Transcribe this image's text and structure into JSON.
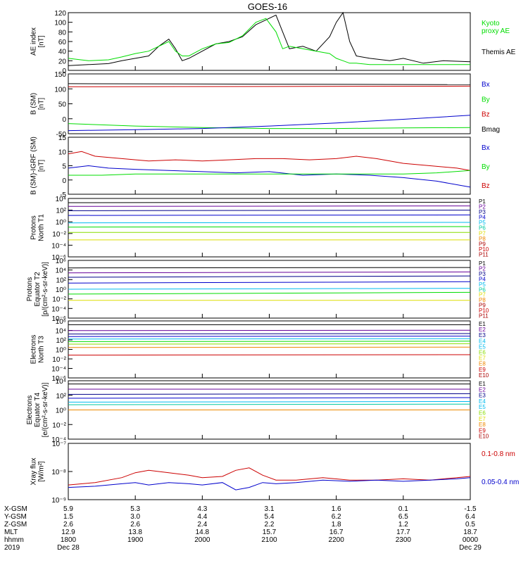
{
  "title": "GOES-16",
  "colors": {
    "black": "#000000",
    "green": "#00dd00",
    "blue": "#0000cc",
    "red": "#cc0000",
    "cyan": "#00bbee",
    "teal": "#00c8a0",
    "lime": "#88dd00",
    "yellow": "#dddd00",
    "orange": "#ee8800",
    "purple": "#660099",
    "navy": "#000088",
    "darkred": "#aa0000"
  },
  "chart_data": [
    {
      "type": "line",
      "ylabel": "AE index\n[nT]",
      "yticks": [
        "120",
        "100",
        "80",
        "60",
        "40",
        "20",
        "0"
      ],
      "ylim": [
        0,
        120
      ],
      "legend": [
        {
          "label": "Kyoto\nproxy AE",
          "color": "green"
        },
        {
          "label": "Themis AE",
          "color": "black"
        }
      ],
      "x_hours": [
        0,
        1,
        2,
        3,
        4,
        5,
        6
      ],
      "series": [
        {
          "name": "Themis AE",
          "color": "black",
          "x": [
            0,
            0.3,
            0.6,
            0.8,
            1.0,
            1.2,
            1.35,
            1.5,
            1.6,
            1.7,
            1.8,
            2.0,
            2.2,
            2.4,
            2.6,
            2.8,
            2.95,
            3.1,
            3.2,
            3.3,
            3.5,
            3.7,
            3.9,
            4.0,
            4.1,
            4.2,
            4.3,
            4.5,
            4.8,
            5.0,
            5.3,
            5.6,
            6.0
          ],
          "y": [
            10,
            12,
            14,
            20,
            25,
            30,
            50,
            65,
            45,
            20,
            25,
            40,
            55,
            60,
            70,
            95,
            105,
            115,
            80,
            45,
            50,
            40,
            70,
            100,
            120,
            60,
            30,
            25,
            20,
            25,
            15,
            20,
            18
          ]
        },
        {
          "name": "Kyoto proxy AE",
          "color": "green",
          "x": [
            0,
            0.3,
            0.6,
            0.8,
            1.0,
            1.2,
            1.35,
            1.5,
            1.6,
            1.7,
            1.8,
            2.0,
            2.2,
            2.4,
            2.6,
            2.8,
            2.95,
            3.1,
            3.2,
            3.3,
            3.5,
            3.7,
            3.9,
            4.0,
            4.1,
            4.2,
            4.3,
            4.5,
            4.8,
            5.0,
            5.3,
            5.6,
            6.0
          ],
          "y": [
            25,
            20,
            22,
            28,
            35,
            40,
            50,
            60,
            40,
            30,
            30,
            45,
            55,
            58,
            72,
            100,
            108,
            80,
            45,
            50,
            45,
            40,
            35,
            25,
            20,
            15,
            15,
            12,
            12,
            12,
            12,
            12,
            12
          ]
        }
      ]
    },
    {
      "type": "line",
      "ylabel": "B (SM)\n[nT]",
      "yticks": [
        "150",
        "100",
        "50",
        "0",
        "-50"
      ],
      "ylim": [
        -55,
        140
      ],
      "legend": [
        {
          "label": "Bx",
          "color": "blue"
        },
        {
          "label": "By",
          "color": "green"
        },
        {
          "label": "Bz",
          "color": "red"
        },
        {
          "label": "Bmag",
          "color": "black"
        }
      ],
      "series": [
        {
          "name": "Bmag",
          "color": "black",
          "x": [
            0,
            6
          ],
          "y": [
            108,
            105
          ]
        },
        {
          "name": "Bz",
          "color": "red",
          "x": [
            0,
            6
          ],
          "y": [
            98,
            100
          ]
        },
        {
          "name": "By",
          "color": "green",
          "x": [
            0,
            1,
            2,
            3,
            4,
            5,
            6
          ],
          "y": [
            -22,
            -30,
            -35,
            -38,
            -38,
            -36,
            -35
          ]
        },
        {
          "name": "Bx",
          "color": "blue",
          "x": [
            0,
            1,
            2,
            3,
            4,
            5,
            6
          ],
          "y": [
            -45,
            -42,
            -38,
            -30,
            -20,
            -8,
            5
          ]
        }
      ]
    },
    {
      "type": "line",
      "ylabel": "B (SM)-IGRF (SM)\n[nT]",
      "yticks": [
        "15",
        "10",
        "5",
        "0",
        "-5"
      ],
      "ylim": [
        -7,
        17
      ],
      "legend": [
        {
          "label": "Bx",
          "color": "blue"
        },
        {
          "label": "By",
          "color": "green"
        },
        {
          "label": "Bz",
          "color": "red"
        }
      ],
      "series": [
        {
          "name": "Bz",
          "color": "red",
          "x": [
            0,
            0.2,
            0.4,
            0.8,
            1.2,
            1.6,
            2.0,
            2.4,
            2.8,
            3.2,
            3.6,
            4.0,
            4.3,
            4.6,
            5.0,
            5.4,
            5.8,
            6.0
          ],
          "y": [
            10,
            11,
            9,
            8,
            7,
            7.5,
            7,
            7.5,
            8,
            8,
            7.5,
            8,
            9,
            8,
            6,
            5,
            4,
            3
          ]
        },
        {
          "name": "Bx",
          "color": "blue",
          "x": [
            0,
            0.3,
            0.6,
            1.0,
            1.5,
            2.0,
            2.5,
            3.0,
            3.5,
            4.0,
            4.5,
            5.0,
            5.5,
            6.0
          ],
          "y": [
            4,
            5,
            4,
            3.5,
            3,
            2.5,
            2,
            2.5,
            1,
            1.5,
            1,
            0,
            -1.5,
            -4
          ]
        },
        {
          "name": "By",
          "color": "green",
          "x": [
            0,
            0.5,
            1.0,
            2.0,
            3.0,
            4.0,
            5.0,
            5.5,
            6.0
          ],
          "y": [
            1,
            1,
            1.5,
            1.5,
            1.5,
            1.5,
            1.5,
            2,
            3
          ]
        }
      ]
    },
    {
      "type": "line",
      "ylabel": "Protons\nNorth T1",
      "yticks": [
        "10⁴",
        "10²",
        "10⁰",
        "10⁻²",
        "10⁻⁴",
        "10⁻⁶"
      ],
      "ylim": [
        -7,
        4
      ],
      "log": true,
      "legend": [
        "P1",
        "P2",
        "P3",
        "P4",
        "P5",
        "P6",
        "P7",
        "P8",
        "P9",
        "P10",
        "P11"
      ],
      "series": [
        {
          "name": "P1",
          "color": "black",
          "x": [
            0,
            6
          ],
          "y": [
            3.2,
            3.3
          ]
        },
        {
          "name": "P2",
          "color": "purple",
          "x": [
            0,
            6
          ],
          "y": [
            2.5,
            2.6
          ]
        },
        {
          "name": "P3",
          "color": "navy",
          "x": [
            0,
            6
          ],
          "y": [
            1.7,
            1.8
          ]
        },
        {
          "name": "P4",
          "color": "blue",
          "x": [
            0,
            6
          ],
          "y": [
            0.8,
            0.9
          ]
        },
        {
          "name": "P5",
          "color": "cyan",
          "x": [
            0,
            6
          ],
          "y": [
            -0.6,
            -0.5
          ]
        },
        {
          "name": "P6",
          "color": "green",
          "x": [
            0,
            6
          ],
          "y": [
            -1.4,
            -1.3
          ]
        },
        {
          "name": "P7",
          "color": "lime",
          "x": [
            0,
            6
          ],
          "y": [
            -2.4,
            -2.4
          ]
        },
        {
          "name": "P8",
          "color": "yellow",
          "x": [
            0,
            6
          ],
          "y": [
            -3.8,
            -3.8
          ]
        }
      ]
    },
    {
      "type": "line",
      "ylabel": "Protons\nEquator T2\n[p/(cm²-s-sr-keV)]",
      "yticks": [
        "10⁶",
        "10⁴",
        "10²",
        "10⁰",
        "10⁻²",
        "10⁻⁴",
        "10⁻⁶"
      ],
      "ylim": [
        -7,
        6
      ],
      "log": true,
      "legend": [
        "P1",
        "P2",
        "P3",
        "P4",
        "P5",
        "P6",
        "P7",
        "P8",
        "P9",
        "P10",
        "P11"
      ],
      "series": [
        {
          "name": "P1",
          "color": "black",
          "x": [
            0,
            6
          ],
          "y": [
            4.3,
            4.4
          ]
        },
        {
          "name": "P2",
          "color": "purple",
          "x": [
            0,
            6
          ],
          "y": [
            3.2,
            3.4
          ]
        },
        {
          "name": "P3",
          "color": "navy",
          "x": [
            0,
            6
          ],
          "y": [
            2.2,
            2.5
          ]
        },
        {
          "name": "P4",
          "color": "blue",
          "x": [
            0,
            6
          ],
          "y": [
            0.9,
            1.2
          ]
        },
        {
          "name": "P5",
          "color": "cyan",
          "x": [
            0,
            6
          ],
          "y": [
            -0.5,
            -0.3
          ]
        },
        {
          "name": "P6",
          "color": "green",
          "x": [
            0,
            6
          ],
          "y": [
            -1.6,
            -1.2
          ]
        },
        {
          "name": "P7",
          "color": "yellow",
          "x": [
            0,
            6
          ],
          "y": [
            -3.0,
            -3.0
          ]
        }
      ]
    },
    {
      "type": "line",
      "ylabel": "Electrons\nNorth T3",
      "yticks": [
        "10⁶",
        "10⁴",
        "10²",
        "10⁰",
        "10⁻²",
        "10⁻⁴",
        "10⁻⁶"
      ],
      "ylim": [
        -7,
        6.5
      ],
      "log": true,
      "legend": [
        "E1",
        "E2",
        "E3",
        "E4",
        "E5",
        "E6",
        "E7",
        "E8",
        "E9",
        "E10"
      ],
      "series": [
        {
          "name": "E1",
          "color": "black",
          "x": [
            0,
            6
          ],
          "y": [
            5.6,
            5.6
          ]
        },
        {
          "name": "E2",
          "color": "purple",
          "x": [
            0,
            6
          ],
          "y": [
            4.2,
            4.3
          ]
        },
        {
          "name": "E3",
          "color": "navy",
          "x": [
            0,
            6
          ],
          "y": [
            3.4,
            3.5
          ]
        },
        {
          "name": "E4",
          "color": "blue",
          "x": [
            0,
            6
          ],
          "y": [
            2.8,
            2.9
          ]
        },
        {
          "name": "E5",
          "color": "cyan",
          "x": [
            0,
            6
          ],
          "y": [
            2.2,
            2.3
          ]
        },
        {
          "name": "E6",
          "color": "green",
          "x": [
            0,
            6
          ],
          "y": [
            1.6,
            1.7
          ]
        },
        {
          "name": "E7",
          "color": "lime",
          "x": [
            0,
            6
          ],
          "y": [
            1.0,
            1.1
          ]
        },
        {
          "name": "E8",
          "color": "orange",
          "x": [
            0,
            6
          ],
          "y": [
            0.2,
            0.3
          ]
        },
        {
          "name": "E9",
          "color": "red",
          "x": [
            0,
            6
          ],
          "y": [
            -1.6,
            -1.5
          ]
        }
      ]
    },
    {
      "type": "line",
      "ylabel": "Electrons\nEquator T4\n[e/(cm²-s-sr-keV)]",
      "yticks": [
        "10⁴",
        "10²",
        "10⁰",
        "10⁻²",
        "10⁻⁴"
      ],
      "ylim": [
        -4.5,
        4.5
      ],
      "log": true,
      "legend": [
        "E1",
        "E2",
        "E3",
        "E4",
        "E5",
        "E6",
        "E7",
        "E8",
        "E9",
        "E10"
      ],
      "series": [
        {
          "name": "E1",
          "color": "black",
          "x": [
            0,
            6
          ],
          "y": [
            4.0,
            4.0
          ]
        },
        {
          "name": "E2",
          "color": "purple",
          "x": [
            0,
            6
          ],
          "y": [
            3.2,
            3.2
          ]
        },
        {
          "name": "E3",
          "color": "navy",
          "x": [
            0,
            6
          ],
          "y": [
            2.4,
            2.5
          ]
        },
        {
          "name": "E4",
          "color": "blue",
          "x": [
            0,
            6
          ],
          "y": [
            1.8,
            1.9
          ]
        },
        {
          "name": "E5",
          "color": "cyan",
          "x": [
            0,
            6
          ],
          "y": [
            1.2,
            1.3
          ]
        },
        {
          "name": "E6",
          "color": "teal",
          "x": [
            0,
            6
          ],
          "y": [
            0.8,
            0.9
          ]
        },
        {
          "name": "E7",
          "color": "orange",
          "x": [
            0,
            6
          ],
          "y": [
            0.0,
            0.0
          ]
        }
      ]
    },
    {
      "type": "line",
      "ylabel": "Xray flux\n[W/m²]",
      "yticks": [
        "10⁻⁷",
        "10⁻⁸",
        "10⁻⁹"
      ],
      "ylim": [
        -9.3,
        -7
      ],
      "log": true,
      "legend": [
        {
          "label": "0.1-0.8 nm",
          "color": "red"
        },
        {
          "label": "0.05-0.4 nm",
          "color": "blue"
        }
      ],
      "series": [
        {
          "name": "0.1-0.8 nm",
          "color": "red",
          "x": [
            0,
            0.4,
            0.8,
            1.0,
            1.2,
            1.5,
            1.8,
            2.0,
            2.3,
            2.5,
            2.7,
            2.9,
            3.1,
            3.4,
            3.8,
            4.2,
            4.6,
            5.0,
            5.4,
            5.8,
            6.0
          ],
          "y": [
            -8.7,
            -8.6,
            -8.4,
            -8.2,
            -8.1,
            -8.2,
            -8.3,
            -8.4,
            -8.35,
            -8.1,
            -8.0,
            -8.3,
            -8.5,
            -8.5,
            -8.4,
            -8.5,
            -8.5,
            -8.45,
            -8.5,
            -8.4,
            -8.35
          ]
        },
        {
          "name": "0.05-0.4 nm",
          "color": "blue",
          "x": [
            0,
            0.4,
            0.8,
            1.0,
            1.2,
            1.5,
            1.8,
            2.0,
            2.3,
            2.5,
            2.7,
            2.9,
            3.1,
            3.4,
            3.8,
            4.2,
            4.6,
            5.0,
            5.4,
            5.8,
            6.0
          ],
          "y": [
            -8.8,
            -8.75,
            -8.65,
            -8.6,
            -8.7,
            -8.6,
            -8.65,
            -8.7,
            -8.6,
            -8.9,
            -8.8,
            -8.6,
            -8.65,
            -8.6,
            -8.5,
            -8.55,
            -8.5,
            -8.55,
            -8.5,
            -8.45,
            -8.4
          ]
        }
      ]
    }
  ],
  "xaxis_rows": [
    {
      "label": "X-GSM",
      "values": [
        "5.9",
        "5.3",
        "4.3",
        "3.1",
        "1.6",
        "0.1",
        "-1.5"
      ]
    },
    {
      "label": "Y-GSM",
      "values": [
        "1.5",
        "3.0",
        "4.4",
        "5.4",
        "6.2",
        "6.5",
        "6.4"
      ]
    },
    {
      "label": "Z-GSM",
      "values": [
        "2.6",
        "2.6",
        "2.4",
        "2.2",
        "1.8",
        "1.2",
        "0.5"
      ]
    },
    {
      "label": "MLT",
      "values": [
        "12.9",
        "13.8",
        "14.8",
        "15.7",
        "16.7",
        "17.7",
        "18.7"
      ]
    },
    {
      "label": "hhmm",
      "values": [
        "1800",
        "1900",
        "2000",
        "2100",
        "2200",
        "2300",
        "0000"
      ]
    },
    {
      "label": "2019",
      "values": [
        "Dec 28",
        "",
        "",
        "",
        "",
        "",
        "Dec 29"
      ]
    }
  ]
}
